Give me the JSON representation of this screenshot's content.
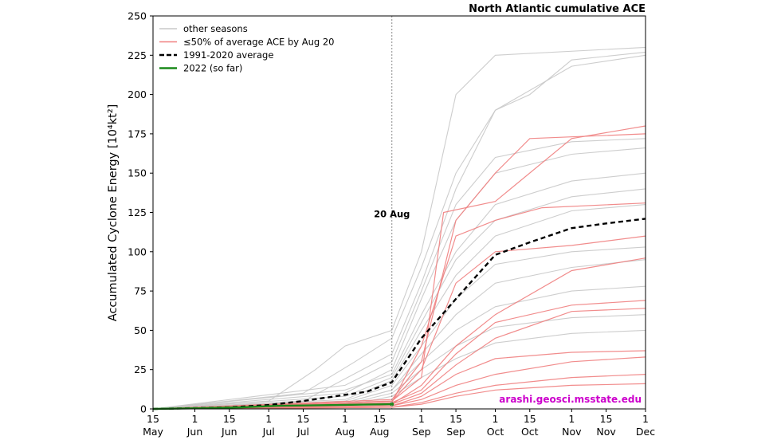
{
  "chart_data": {
    "type": "line",
    "title": "North Atlantic cumulative ACE",
    "ylabel": "Accumulated Cyclone Energy [10⁴kt²]",
    "xlabel": "",
    "ylim": [
      0,
      250
    ],
    "xlim": [
      "2022-05-15",
      "2022-12-01"
    ],
    "yticks": [
      0,
      25,
      50,
      75,
      100,
      125,
      150,
      175,
      200,
      225,
      250
    ],
    "xticks": [
      {
        "date": "2022-05-15",
        "day": "15",
        "month": "May"
      },
      {
        "date": "2022-06-01",
        "day": "1",
        "month": "Jun"
      },
      {
        "date": "2022-06-15",
        "day": "15",
        "month": "Jun"
      },
      {
        "date": "2022-07-01",
        "day": "1",
        "month": "Jul"
      },
      {
        "date": "2022-07-15",
        "day": "15",
        "month": "Jul"
      },
      {
        "date": "2022-08-01",
        "day": "1",
        "month": "Aug"
      },
      {
        "date": "2022-08-15",
        "day": "15",
        "month": "Aug"
      },
      {
        "date": "2022-09-01",
        "day": "1",
        "month": "Sep"
      },
      {
        "date": "2022-09-15",
        "day": "15",
        "month": "Sep"
      },
      {
        "date": "2022-10-01",
        "day": "1",
        "month": "Oct"
      },
      {
        "date": "2022-10-15",
        "day": "15",
        "month": "Oct"
      },
      {
        "date": "2022-11-01",
        "day": "1",
        "month": "Nov"
      },
      {
        "date": "2022-11-15",
        "day": "15",
        "month": "Nov"
      },
      {
        "date": "2022-12-01",
        "day": "1",
        "month": "Dec"
      }
    ],
    "grid": false,
    "legend_position": "top-left",
    "legend": [
      {
        "label": "other seasons",
        "color": "#c8c8c8",
        "style": "solid"
      },
      {
        "label": "≤50% of average ACE by Aug 20",
        "color": "#f08080",
        "style": "solid"
      },
      {
        "label": "1991-2020 average",
        "color": "#000000",
        "style": "dashed"
      },
      {
        "label": "2022 (so far)",
        "color": "#1a8a1a",
        "style": "solid"
      }
    ],
    "vline": {
      "date": "2022-08-20",
      "label": "20 Aug"
    },
    "credit": "arashi.geosci.msstate.edu",
    "colors": {
      "other": "#c8c8c8",
      "low": "#f08080",
      "average": "#000000",
      "current": "#1a8a1a"
    },
    "series": [
      {
        "group": "average",
        "points": [
          [
            "2022-05-15",
            0
          ],
          [
            "2022-06-01",
            0.5
          ],
          [
            "2022-06-15",
            1
          ],
          [
            "2022-07-01",
            2.5
          ],
          [
            "2022-07-15",
            5
          ],
          [
            "2022-08-01",
            9
          ],
          [
            "2022-08-10",
            11
          ],
          [
            "2022-08-20",
            17
          ],
          [
            "2022-09-01",
            45
          ],
          [
            "2022-09-15",
            70
          ],
          [
            "2022-10-01",
            98
          ],
          [
            "2022-10-15",
            106
          ],
          [
            "2022-11-01",
            115
          ],
          [
            "2022-11-15",
            118
          ],
          [
            "2022-12-01",
            121
          ]
        ]
      },
      {
        "group": "current",
        "points": [
          [
            "2022-05-15",
            0
          ],
          [
            "2022-06-05",
            0.5
          ],
          [
            "2022-06-20",
            1
          ],
          [
            "2022-07-05",
            2
          ],
          [
            "2022-08-20",
            3
          ]
        ]
      },
      {
        "group": "other",
        "points": [
          [
            "2022-05-15",
            0
          ],
          [
            "2022-07-01",
            5
          ],
          [
            "2022-07-20",
            25
          ],
          [
            "2022-08-01",
            40
          ],
          [
            "2022-08-20",
            50
          ],
          [
            "2022-09-01",
            100
          ],
          [
            "2022-09-15",
            200
          ],
          [
            "2022-10-01",
            225
          ],
          [
            "2022-12-01",
            230
          ]
        ]
      },
      {
        "group": "other",
        "points": [
          [
            "2022-05-15",
            0
          ],
          [
            "2022-07-15",
            10
          ],
          [
            "2022-08-05",
            30
          ],
          [
            "2022-08-20",
            45
          ],
          [
            "2022-09-01",
            90
          ],
          [
            "2022-09-15",
            150
          ],
          [
            "2022-10-01",
            190
          ],
          [
            "2022-10-15",
            200
          ],
          [
            "2022-11-01",
            222
          ],
          [
            "2022-12-01",
            227
          ]
        ]
      },
      {
        "group": "other",
        "points": [
          [
            "2022-05-15",
            0
          ],
          [
            "2022-07-15",
            5
          ],
          [
            "2022-08-20",
            35
          ],
          [
            "2022-09-01",
            80
          ],
          [
            "2022-09-15",
            140
          ],
          [
            "2022-10-01",
            190
          ],
          [
            "2022-11-01",
            218
          ],
          [
            "2022-12-01",
            225
          ]
        ]
      },
      {
        "group": "other",
        "points": [
          [
            "2022-05-15",
            0
          ],
          [
            "2022-08-01",
            15
          ],
          [
            "2022-08-20",
            30
          ],
          [
            "2022-09-01",
            75
          ],
          [
            "2022-09-15",
            130
          ],
          [
            "2022-10-01",
            160
          ],
          [
            "2022-11-01",
            170
          ],
          [
            "2022-12-01",
            172
          ]
        ]
      },
      {
        "group": "other",
        "points": [
          [
            "2022-05-15",
            0
          ],
          [
            "2022-08-01",
            10
          ],
          [
            "2022-08-20",
            25
          ],
          [
            "2022-09-01",
            70
          ],
          [
            "2022-09-15",
            120
          ],
          [
            "2022-10-01",
            150
          ],
          [
            "2022-11-01",
            162
          ],
          [
            "2022-12-01",
            166
          ]
        ]
      },
      {
        "group": "other",
        "points": [
          [
            "2022-05-15",
            0
          ],
          [
            "2022-08-01",
            12
          ],
          [
            "2022-08-20",
            22
          ],
          [
            "2022-09-01",
            60
          ],
          [
            "2022-09-15",
            100
          ],
          [
            "2022-10-01",
            130
          ],
          [
            "2022-11-01",
            145
          ],
          [
            "2022-12-01",
            150
          ]
        ]
      },
      {
        "group": "other",
        "points": [
          [
            "2022-05-15",
            0
          ],
          [
            "2022-08-01",
            8
          ],
          [
            "2022-08-20",
            20
          ],
          [
            "2022-09-01",
            55
          ],
          [
            "2022-09-15",
            95
          ],
          [
            "2022-10-01",
            120
          ],
          [
            "2022-11-01",
            135
          ],
          [
            "2022-12-01",
            140
          ]
        ]
      },
      {
        "group": "other",
        "points": [
          [
            "2022-05-15",
            0
          ],
          [
            "2022-08-01",
            6
          ],
          [
            "2022-08-20",
            18
          ],
          [
            "2022-09-01",
            50
          ],
          [
            "2022-09-15",
            85
          ],
          [
            "2022-10-01",
            110
          ],
          [
            "2022-11-01",
            126
          ],
          [
            "2022-12-01",
            130
          ]
        ]
      },
      {
        "group": "other",
        "points": [
          [
            "2022-05-15",
            0
          ],
          [
            "2022-08-01",
            5
          ],
          [
            "2022-08-20",
            15
          ],
          [
            "2022-09-01",
            40
          ],
          [
            "2022-09-15",
            70
          ],
          [
            "2022-10-01",
            92
          ],
          [
            "2022-11-01",
            100
          ],
          [
            "2022-12-01",
            103
          ]
        ]
      },
      {
        "group": "other",
        "points": [
          [
            "2022-05-15",
            0
          ],
          [
            "2022-08-01",
            4
          ],
          [
            "2022-08-20",
            12
          ],
          [
            "2022-09-01",
            35
          ],
          [
            "2022-09-15",
            60
          ],
          [
            "2022-10-01",
            80
          ],
          [
            "2022-11-01",
            90
          ],
          [
            "2022-12-01",
            95
          ]
        ]
      },
      {
        "group": "other",
        "points": [
          [
            "2022-05-15",
            0
          ],
          [
            "2022-08-01",
            4
          ],
          [
            "2022-08-20",
            12
          ],
          [
            "2022-09-01",
            30
          ],
          [
            "2022-09-15",
            50
          ],
          [
            "2022-10-01",
            65
          ],
          [
            "2022-11-01",
            75
          ],
          [
            "2022-12-01",
            78
          ]
        ]
      },
      {
        "group": "other",
        "points": [
          [
            "2022-05-15",
            0
          ],
          [
            "2022-08-01",
            3
          ],
          [
            "2022-08-20",
            10
          ],
          [
            "2022-09-01",
            25
          ],
          [
            "2022-09-15",
            40
          ],
          [
            "2022-10-01",
            52
          ],
          [
            "2022-11-01",
            58
          ],
          [
            "2022-12-01",
            60
          ]
        ]
      },
      {
        "group": "other",
        "points": [
          [
            "2022-05-15",
            0
          ],
          [
            "2022-08-01",
            2
          ],
          [
            "2022-08-20",
            8
          ],
          [
            "2022-09-01",
            20
          ],
          [
            "2022-09-15",
            32
          ],
          [
            "2022-10-01",
            42
          ],
          [
            "2022-11-01",
            48
          ],
          [
            "2022-12-01",
            50
          ]
        ]
      },
      {
        "group": "low",
        "points": [
          [
            "2022-05-15",
            0
          ],
          [
            "2022-08-20",
            5
          ],
          [
            "2022-09-01",
            20
          ],
          [
            "2022-09-10",
            125
          ],
          [
            "2022-10-01",
            132
          ],
          [
            "2022-11-01",
            172
          ],
          [
            "2022-12-01",
            180
          ]
        ]
      },
      {
        "group": "low",
        "points": [
          [
            "2022-05-15",
            0
          ],
          [
            "2022-08-20",
            6
          ],
          [
            "2022-09-01",
            30
          ],
          [
            "2022-09-15",
            120
          ],
          [
            "2022-10-01",
            150
          ],
          [
            "2022-10-15",
            172
          ],
          [
            "2022-12-01",
            175
          ]
        ]
      },
      {
        "group": "low",
        "points": [
          [
            "2022-05-15",
            0
          ],
          [
            "2022-08-20",
            4
          ],
          [
            "2022-09-01",
            40
          ],
          [
            "2022-09-15",
            110
          ],
          [
            "2022-10-01",
            120
          ],
          [
            "2022-10-20",
            128
          ],
          [
            "2022-12-01",
            131
          ]
        ]
      },
      {
        "group": "low",
        "points": [
          [
            "2022-05-15",
            0
          ],
          [
            "2022-08-20",
            5
          ],
          [
            "2022-09-01",
            25
          ],
          [
            "2022-09-15",
            80
          ],
          [
            "2022-10-01",
            100
          ],
          [
            "2022-11-01",
            104
          ],
          [
            "2022-12-01",
            110
          ]
        ]
      },
      {
        "group": "low",
        "points": [
          [
            "2022-05-15",
            0
          ],
          [
            "2022-08-20",
            3
          ],
          [
            "2022-09-01",
            15
          ],
          [
            "2022-09-15",
            40
          ],
          [
            "2022-10-01",
            60
          ],
          [
            "2022-11-01",
            88
          ],
          [
            "2022-12-01",
            96
          ]
        ]
      },
      {
        "group": "low",
        "points": [
          [
            "2022-05-15",
            0
          ],
          [
            "2022-08-20",
            4
          ],
          [
            "2022-09-01",
            12
          ],
          [
            "2022-09-15",
            35
          ],
          [
            "2022-10-01",
            55
          ],
          [
            "2022-11-01",
            66
          ],
          [
            "2022-12-01",
            69
          ]
        ]
      },
      {
        "group": "low",
        "points": [
          [
            "2022-05-15",
            0
          ],
          [
            "2022-08-20",
            3
          ],
          [
            "2022-09-01",
            10
          ],
          [
            "2022-09-15",
            28
          ],
          [
            "2022-10-01",
            45
          ],
          [
            "2022-11-01",
            62
          ],
          [
            "2022-12-01",
            64
          ]
        ]
      },
      {
        "group": "low",
        "points": [
          [
            "2022-05-15",
            0
          ],
          [
            "2022-08-20",
            2
          ],
          [
            "2022-09-01",
            8
          ],
          [
            "2022-09-15",
            22
          ],
          [
            "2022-10-01",
            32
          ],
          [
            "2022-11-01",
            36
          ],
          [
            "2022-12-01",
            37
          ]
        ]
      },
      {
        "group": "low",
        "points": [
          [
            "2022-05-15",
            0
          ],
          [
            "2022-08-20",
            2
          ],
          [
            "2022-09-01",
            6
          ],
          [
            "2022-09-15",
            15
          ],
          [
            "2022-10-01",
            22
          ],
          [
            "2022-11-01",
            30
          ],
          [
            "2022-12-01",
            33
          ]
        ]
      },
      {
        "group": "low",
        "points": [
          [
            "2022-05-15",
            0
          ],
          [
            "2022-08-20",
            1
          ],
          [
            "2022-09-01",
            4
          ],
          [
            "2022-09-15",
            10
          ],
          [
            "2022-10-01",
            15
          ],
          [
            "2022-11-01",
            20
          ],
          [
            "2022-12-01",
            22
          ]
        ]
      },
      {
        "group": "low",
        "points": [
          [
            "2022-05-15",
            0
          ],
          [
            "2022-08-20",
            1
          ],
          [
            "2022-09-01",
            3
          ],
          [
            "2022-09-15",
            8
          ],
          [
            "2022-10-01",
            12
          ],
          [
            "2022-11-01",
            15
          ],
          [
            "2022-12-01",
            16
          ]
        ]
      }
    ]
  }
}
